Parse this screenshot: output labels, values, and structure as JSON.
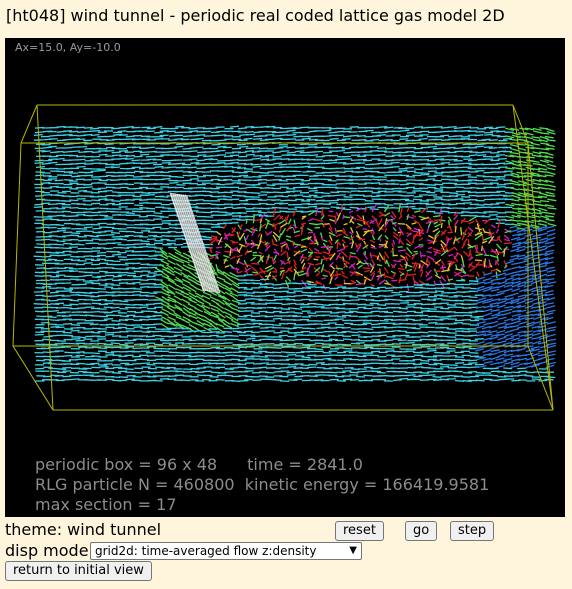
{
  "page": {
    "title": "[ht048] wind tunnel - periodic real coded lattice gas model 2D"
  },
  "viewport": {
    "angle_readout": "Ax=15.0, Ay=-10.0",
    "stats": {
      "periodic_box": "periodic box = 96 x 48",
      "time": "time = 2841.0",
      "particles": "RLG particle N = 460800",
      "kinetic_energy": "kinetic energy = 166419.9581",
      "max_section": "max section = 17"
    },
    "colors": {
      "background": "#000000",
      "box_outline": "#b8b800",
      "obstacle": "#dddddd",
      "flow_primary": "#3cd2e6",
      "flow_wake_red": "#e02020",
      "flow_wake_magenta": "#d21ec8",
      "flow_wake_yellow": "#e6c828",
      "flow_green": "#50dc50",
      "flow_blue": "#2878e6"
    }
  },
  "controls": {
    "theme_label": "theme: wind tunnel",
    "reset_label": "reset",
    "go_label": "go",
    "step_label": "step",
    "disp_mode_label": "disp mode:",
    "disp_mode_selected": "grid2d: time-averaged flow z:density",
    "return_label": "return to initial view"
  }
}
